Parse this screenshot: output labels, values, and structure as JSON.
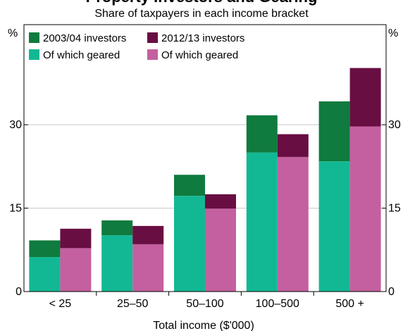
{
  "chart_data": {
    "type": "bar",
    "title": "Property Investors and Gearing",
    "subtitle": "Share of taxpayers in each income bracket",
    "xlabel": "Total income ($'000)",
    "y_unit": "%",
    "ylim": [
      0,
      48
    ],
    "yticks": [
      0,
      15,
      30
    ],
    "categories": [
      "< 25",
      "25–50",
      "50–100",
      "100–500",
      "500 +"
    ],
    "series": [
      {
        "name": "2003/04 investors",
        "color": "#0f7b3e",
        "values": [
          9.2,
          12.8,
          21.0,
          31.7,
          34.2
        ]
      },
      {
        "name": "Of which geared",
        "color": "#12b894",
        "values": [
          6.2,
          10.1,
          17.2,
          25.0,
          23.4
        ]
      },
      {
        "name": "2012/13 investors",
        "color": "#680e42",
        "values": [
          11.3,
          11.8,
          17.5,
          28.3,
          40.2
        ]
      },
      {
        "name": "Of which geared",
        "color": "#c4609f",
        "values": [
          7.8,
          8.5,
          14.9,
          24.2,
          29.7
        ]
      }
    ],
    "legend_position": "top-left",
    "grid": true
  }
}
